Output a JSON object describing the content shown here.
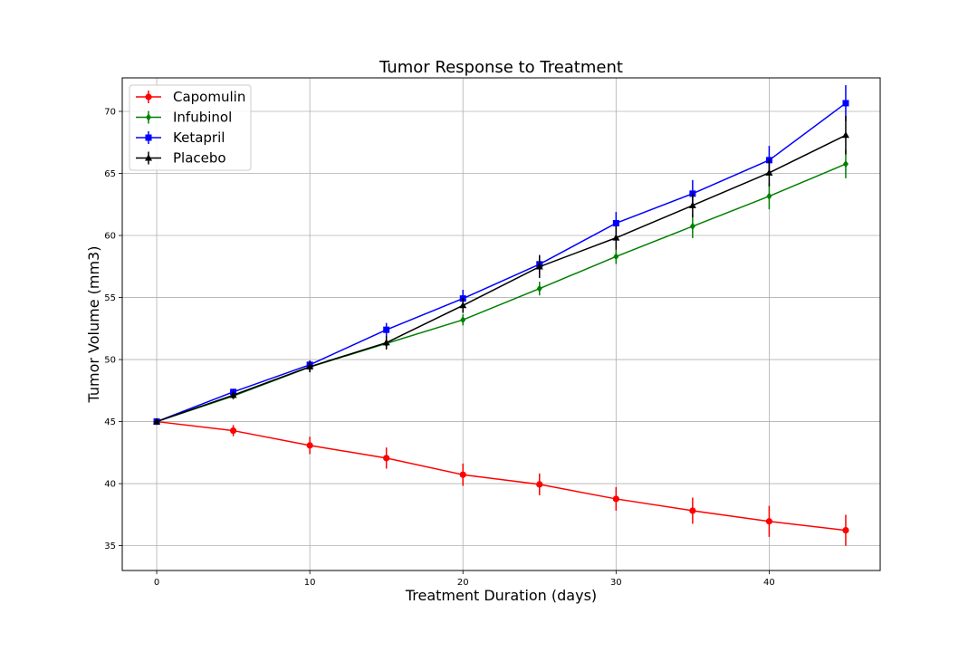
{
  "chart_data": {
    "type": "line",
    "title": "Tumor Response to Treatment",
    "xlabel": "Treatment Duration (days)",
    "ylabel": "Tumor Volume (mm3)",
    "xlim": [
      -2.25,
      47.25
    ],
    "ylim": [
      33.0,
      72.7
    ],
    "x_ticks": [
      0,
      10,
      20,
      30,
      40
    ],
    "y_ticks": [
      35,
      40,
      45,
      50,
      55,
      60,
      65,
      70
    ],
    "grid": true,
    "legend_position": "top-left",
    "x": [
      0,
      5,
      10,
      15,
      20,
      25,
      30,
      35,
      40,
      45
    ],
    "series": [
      {
        "name": "Capomulin",
        "color": "#ff0000",
        "marker": "circle",
        "values": [
          45.0,
          44.27,
          43.08,
          42.06,
          40.72,
          39.94,
          38.77,
          37.82,
          36.96,
          36.24
        ],
        "errors": [
          0.0,
          0.45,
          0.7,
          0.85,
          0.9,
          0.88,
          0.95,
          1.05,
          1.25,
          1.25
        ]
      },
      {
        "name": "Infubinol",
        "color": "#008000",
        "marker": "diamond",
        "values": [
          45.0,
          47.06,
          49.4,
          51.3,
          53.2,
          55.72,
          58.3,
          60.74,
          63.16,
          65.76
        ],
        "errors": [
          0.0,
          0.25,
          0.35,
          0.4,
          0.45,
          0.55,
          0.6,
          0.95,
          1.05,
          1.15
        ]
      },
      {
        "name": "Ketapril",
        "color": "#0000ff",
        "marker": "square",
        "values": [
          45.0,
          47.39,
          49.58,
          52.4,
          54.92,
          57.68,
          60.99,
          63.37,
          66.07,
          70.66
        ],
        "errors": [
          0.0,
          0.25,
          0.35,
          0.55,
          0.7,
          0.75,
          0.9,
          1.1,
          1.15,
          1.45
        ]
      },
      {
        "name": "Placebo",
        "color": "#000000",
        "marker": "triangle",
        "values": [
          45.0,
          47.13,
          49.42,
          51.36,
          54.36,
          57.48,
          59.81,
          62.42,
          65.05,
          68.08
        ],
        "errors": [
          0.0,
          0.25,
          0.45,
          0.55,
          0.6,
          0.9,
          0.95,
          0.95,
          1.1,
          1.55
        ]
      }
    ]
  }
}
